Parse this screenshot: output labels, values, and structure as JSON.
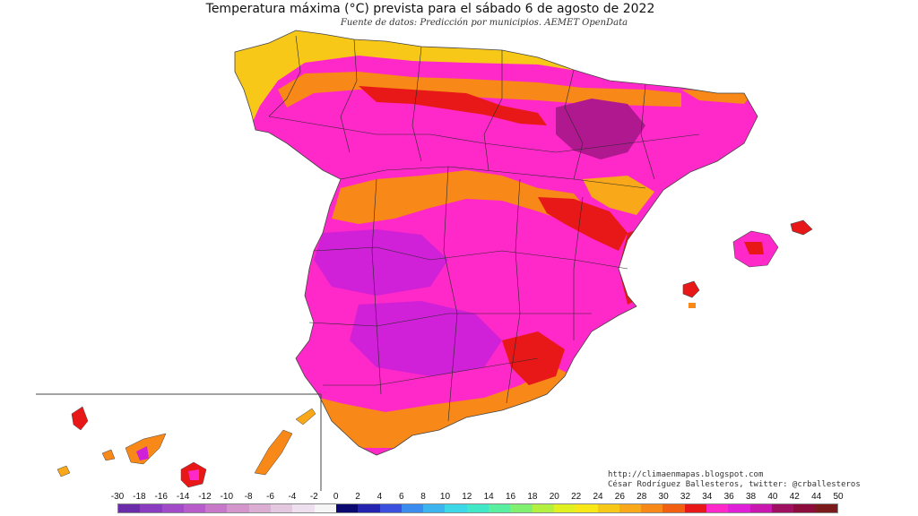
{
  "title": "Temperatura máxima (°C) prevista para el sábado 6 de agosto de 2022",
  "subtitle": "Fuente de datos: Predicción por municipios. AEMET OpenData",
  "credits": {
    "blog": "http://climaenmapas.blogspot.com",
    "author": "César Rodríguez Ballesteros, twitter: @crballesteros"
  },
  "legend": {
    "labels": [
      "-30",
      "-18",
      "-16",
      "-14",
      "-12",
      "-10",
      "-8",
      "-6",
      "-4",
      "-2",
      "0",
      "2",
      "4",
      "6",
      "8",
      "10",
      "12",
      "14",
      "16",
      "18",
      "20",
      "22",
      "24",
      "26",
      "28",
      "30",
      "32",
      "34",
      "36",
      "38",
      "40",
      "42",
      "44",
      "50"
    ],
    "colors": [
      "#6a2ca8",
      "#8a3cc0",
      "#a24bc8",
      "#b85ccc",
      "#c878c8",
      "#d494cc",
      "#dcaed4",
      "#e4c8e0",
      "#eee0ee",
      "#f6f6f6",
      "#0a0a70",
      "#2424b0",
      "#3c50e0",
      "#3c8cf0",
      "#3cb4f0",
      "#3cd8e8",
      "#40e8c8",
      "#58f0a0",
      "#80f070",
      "#b4f040",
      "#e0f020",
      "#f8e818",
      "#f8c818",
      "#f8a818",
      "#f88818",
      "#f06010",
      "#e81818",
      "#ff28c8",
      "#e020d8",
      "#c818b0",
      "#a01060",
      "#8c0c3c",
      "#7a1a1a"
    ],
    "slot_label": "14"
  },
  "colors": {
    "warm_yellow": "#f8c818",
    "orange": "#f88818",
    "red": "#e81818",
    "magenta": "#ff28c8",
    "purple": "#d020d8",
    "dark_magenta": "#b01890"
  }
}
